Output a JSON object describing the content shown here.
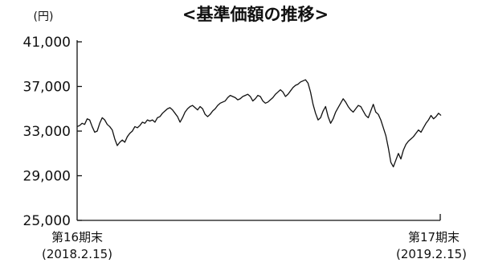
{
  "chart_data": {
    "type": "line",
    "title": "<基準価額の推移>",
    "unit_label": "(円)",
    "xlabel": "",
    "ylabel": "",
    "grid": false,
    "ylim": [
      25000,
      41000
    ],
    "yticks": [
      {
        "value": 25000,
        "label": "25,000"
      },
      {
        "value": 29000,
        "label": "29,000"
      },
      {
        "value": 33000,
        "label": "33,000"
      },
      {
        "value": 37000,
        "label": "37,000"
      },
      {
        "value": 41000,
        "label": "41,000"
      }
    ],
    "x_start": {
      "line1": "第16期末",
      "line2": "(2018.2.15)"
    },
    "x_end": {
      "line1": "第17期末",
      "line2": "(2019.2.15)"
    },
    "series": [
      {
        "values": [
          33400,
          33500,
          33700,
          33600,
          34100,
          34000,
          33400,
          32900,
          33000,
          33700,
          34200,
          34000,
          33600,
          33400,
          33100,
          32300,
          31700,
          32000,
          32200,
          32000,
          32500,
          32800,
          33000,
          33400,
          33300,
          33500,
          33800,
          33700,
          34000,
          33900,
          34000,
          33800,
          34200,
          34300,
          34600,
          34800,
          35000,
          35100,
          34900,
          34600,
          34300,
          33800,
          34200,
          34700,
          35000,
          35200,
          35300,
          35100,
          34900,
          35200,
          35000,
          34500,
          34300,
          34500,
          34800,
          35000,
          35300,
          35500,
          35600,
          35700,
          36000,
          36200,
          36100,
          36000,
          35800,
          35900,
          36100,
          36200,
          36300,
          36100,
          35700,
          35900,
          36200,
          36100,
          35700,
          35500,
          35600,
          35800,
          36000,
          36300,
          36500,
          36700,
          36500,
          36100,
          36300,
          36600,
          36900,
          37100,
          37200,
          37400,
          37500,
          37600,
          37300,
          36500,
          35400,
          34600,
          34000,
          34200,
          34800,
          35200,
          34300,
          33700,
          34100,
          34700,
          35100,
          35500,
          35900,
          35600,
          35200,
          34900,
          34700,
          35000,
          35300,
          35200,
          34800,
          34400,
          34200,
          34800,
          35400,
          34700,
          34500,
          34000,
          33300,
          32600,
          31500,
          30200,
          29800,
          30400,
          31000,
          30500,
          31300,
          31800,
          32100,
          32300,
          32500,
          32800,
          33100,
          32900,
          33300,
          33700,
          34000,
          34400,
          34100,
          34300,
          34600,
          34400
        ]
      }
    ]
  }
}
